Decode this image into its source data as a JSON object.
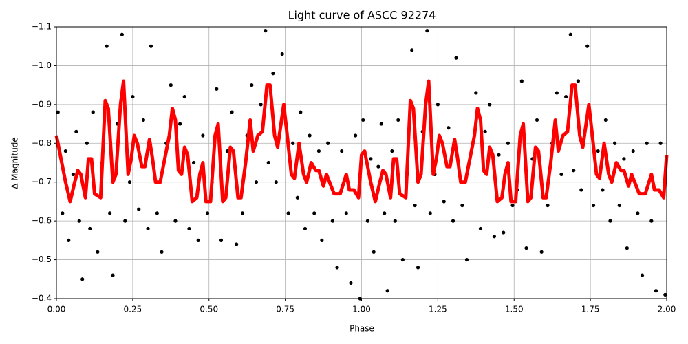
{
  "chart_data": {
    "type": "scatter",
    "title": "Light curve of ASCC 92274",
    "x_label": "Phase",
    "y_label": "Δ Magnitude",
    "xlim": [
      0,
      2
    ],
    "ylim": [
      -0.4,
      -1.1
    ],
    "xticks": [
      {
        "value": 0,
        "label": "0.00"
      },
      {
        "value": 0.25,
        "label": "0.25"
      },
      {
        "value": 0.5,
        "label": "0.50"
      },
      {
        "value": 0.75,
        "label": "0.75"
      },
      {
        "value": 1,
        "label": "1.00"
      },
      {
        "value": 1.25,
        "label": "1.25"
      },
      {
        "value": 1.5,
        "label": "1.50"
      },
      {
        "value": 1.75,
        "label": "1.75"
      },
      {
        "value": 2,
        "label": "2.00"
      }
    ],
    "yticks": [
      {
        "value": -1.1,
        "label": "−1.1"
      },
      {
        "value": -1.0,
        "label": "−1.0"
      },
      {
        "value": -0.9,
        "label": "−0.9"
      },
      {
        "value": -0.8,
        "label": "−0.8"
      },
      {
        "value": -0.7,
        "label": "−0.7"
      },
      {
        "value": -0.6,
        "label": "−0.6"
      },
      {
        "value": -0.5,
        "label": "−0.5"
      },
      {
        "value": -0.4,
        "label": "−0.4"
      }
    ],
    "grid": true,
    "points": {
      "color": "#000000",
      "x": [
        0.005,
        0.02,
        0.03,
        0.04,
        0.055,
        0.065,
        0.075,
        0.085,
        0.1,
        0.11,
        0.12,
        0.135,
        0.15,
        0.165,
        0.175,
        0.185,
        0.2,
        0.215,
        0.225,
        0.24,
        0.25,
        0.27,
        0.285,
        0.3,
        0.31,
        0.33,
        0.345,
        0.36,
        0.375,
        0.39,
        0.405,
        0.42,
        0.435,
        0.45,
        0.465,
        0.48,
        0.495,
        0.51,
        0.525,
        0.54,
        0.56,
        0.575,
        0.59,
        0.61,
        0.625,
        0.64,
        0.655,
        0.67,
        0.685,
        0.695,
        0.71,
        0.72,
        0.74,
        0.76,
        0.775,
        0.79,
        0.8,
        0.815,
        0.83,
        0.845,
        0.86,
        0.87,
        0.89,
        0.905,
        0.92,
        0.935,
        0.95,
        0.965,
        0.98,
        0.995,
        1.005,
        1.02,
        1.03,
        1.04,
        1.055,
        1.065,
        1.075,
        1.085,
        1.1,
        1.11,
        1.12,
        1.135,
        1.15,
        1.165,
        1.175,
        1.185,
        1.2,
        1.215,
        1.225,
        1.24,
        1.25,
        1.27,
        1.285,
        1.3,
        1.31,
        1.33,
        1.345,
        1.36,
        1.375,
        1.39,
        1.405,
        1.42,
        1.435,
        1.45,
        1.465,
        1.48,
        1.495,
        1.51,
        1.525,
        1.54,
        1.56,
        1.575,
        1.59,
        1.61,
        1.625,
        1.64,
        1.655,
        1.67,
        1.685,
        1.695,
        1.71,
        1.72,
        1.74,
        1.76,
        1.775,
        1.79,
        1.8,
        1.815,
        1.83,
        1.845,
        1.86,
        1.87,
        1.89,
        1.905,
        1.92,
        1.935,
        1.95,
        1.965,
        1.98,
        1.995
      ],
      "y": [
        -0.88,
        -0.62,
        -0.78,
        -0.55,
        -0.72,
        -0.83,
        -0.6,
        -0.45,
        -0.8,
        -0.58,
        -0.88,
        -0.52,
        -0.75,
        -1.05,
        -0.62,
        -0.46,
        -0.85,
        -1.08,
        -0.6,
        -0.7,
        -0.92,
        -0.63,
        -0.86,
        -0.58,
        -1.05,
        -0.62,
        -0.52,
        -0.8,
        -0.95,
        -0.6,
        -0.85,
        -0.92,
        -0.58,
        -0.75,
        -0.55,
        -0.82,
        -0.62,
        -0.7,
        -0.94,
        -0.55,
        -0.78,
        -0.88,
        -0.54,
        -0.62,
        -0.82,
        -0.95,
        -0.7,
        -0.9,
        -1.09,
        -0.75,
        -0.98,
        -0.7,
        -1.03,
        -0.62,
        -0.8,
        -0.66,
        -0.88,
        -0.58,
        -0.82,
        -0.62,
        -0.78,
        -0.55,
        -0.8,
        -0.6,
        -0.48,
        -0.78,
        -0.62,
        -0.44,
        -0.82,
        -0.4,
        -0.86,
        -0.6,
        -0.76,
        -0.52,
        -0.74,
        -0.85,
        -0.62,
        -0.42,
        -0.78,
        -0.6,
        -0.86,
        -0.5,
        -0.72,
        -1.04,
        -0.64,
        -0.48,
        -0.83,
        -1.09,
        -0.62,
        -0.72,
        -0.9,
        -0.65,
        -0.84,
        -0.6,
        -1.02,
        -0.64,
        -0.5,
        -0.78,
        -0.93,
        -0.58,
        -0.83,
        -0.9,
        -0.56,
        -0.77,
        -0.57,
        -0.8,
        -0.64,
        -0.68,
        -0.96,
        -0.53,
        -0.76,
        -0.86,
        -0.52,
        -0.64,
        -0.8,
        -0.93,
        -0.72,
        -0.92,
        -1.08,
        -0.73,
        -0.96,
        -0.68,
        -1.05,
        -0.64,
        -0.78,
        -0.68,
        -0.86,
        -0.6,
        -0.8,
        -0.64,
        -0.76,
        -0.53,
        -0.78,
        -0.62,
        -0.46,
        -0.8,
        -0.6,
        -0.42,
        -0.8,
        -0.41
      ]
    },
    "model": {
      "color": "#ff0000",
      "x": [
        0,
        0.01,
        0.03,
        0.045,
        0.06,
        0.07,
        0.08,
        0.095,
        0.105,
        0.115,
        0.125,
        0.145,
        0.16,
        0.17,
        0.185,
        0.195,
        0.21,
        0.22,
        0.235,
        0.245,
        0.255,
        0.265,
        0.28,
        0.29,
        0.305,
        0.315,
        0.325,
        0.34,
        0.355,
        0.37,
        0.38,
        0.39,
        0.4,
        0.41,
        0.42,
        0.43,
        0.445,
        0.46,
        0.47,
        0.48,
        0.49,
        0.505,
        0.52,
        0.53,
        0.545,
        0.555,
        0.57,
        0.58,
        0.595,
        0.605,
        0.62,
        0.635,
        0.645,
        0.66,
        0.675,
        0.69,
        0.7,
        0.715,
        0.725,
        0.745,
        0.755,
        0.77,
        0.78,
        0.795,
        0.81,
        0.82,
        0.835,
        0.85,
        0.86,
        0.875,
        0.885,
        0.895,
        0.91,
        0.93,
        0.95,
        0.96,
        0.975,
        0.99,
        1.0,
        1.01,
        1.03,
        1.045,
        1.06,
        1.07,
        1.08,
        1.095,
        1.105,
        1.115,
        1.125,
        1.145,
        1.16,
        1.17,
        1.185,
        1.195,
        1.21,
        1.22,
        1.235,
        1.245,
        1.255,
        1.265,
        1.28,
        1.29,
        1.305,
        1.315,
        1.325,
        1.34,
        1.355,
        1.37,
        1.38,
        1.39,
        1.4,
        1.41,
        1.42,
        1.43,
        1.445,
        1.46,
        1.47,
        1.48,
        1.49,
        1.505,
        1.52,
        1.53,
        1.545,
        1.555,
        1.57,
        1.58,
        1.595,
        1.605,
        1.62,
        1.635,
        1.645,
        1.66,
        1.675,
        1.69,
        1.7,
        1.715,
        1.725,
        1.745,
        1.755,
        1.77,
        1.78,
        1.795,
        1.81,
        1.82,
        1.835,
        1.85,
        1.86,
        1.875,
        1.885,
        1.895,
        1.91,
        1.93,
        1.95,
        1.96,
        1.975,
        1.99,
        2.0
      ],
      "y": [
        -0.82,
        -0.78,
        -0.7,
        -0.65,
        -0.7,
        -0.73,
        -0.72,
        -0.66,
        -0.76,
        -0.76,
        -0.67,
        -0.66,
        -0.91,
        -0.89,
        -0.7,
        -0.72,
        -0.9,
        -0.96,
        -0.72,
        -0.76,
        -0.82,
        -0.8,
        -0.74,
        -0.74,
        -0.81,
        -0.76,
        -0.7,
        -0.7,
        -0.76,
        -0.82,
        -0.89,
        -0.86,
        -0.73,
        -0.72,
        -0.79,
        -0.77,
        -0.65,
        -0.66,
        -0.72,
        -0.75,
        -0.65,
        -0.65,
        -0.82,
        -0.85,
        -0.65,
        -0.66,
        -0.79,
        -0.78,
        -0.66,
        -0.66,
        -0.75,
        -0.86,
        -0.78,
        -0.82,
        -0.83,
        -0.95,
        -0.95,
        -0.82,
        -0.79,
        -0.9,
        -0.83,
        -0.72,
        -0.71,
        -0.8,
        -0.72,
        -0.7,
        -0.75,
        -0.73,
        -0.73,
        -0.69,
        -0.72,
        -0.7,
        -0.67,
        -0.67,
        -0.72,
        -0.68,
        -0.68,
        -0.66,
        -0.77,
        -0.78,
        -0.7,
        -0.65,
        -0.7,
        -0.73,
        -0.72,
        -0.66,
        -0.76,
        -0.76,
        -0.67,
        -0.66,
        -0.91,
        -0.89,
        -0.7,
        -0.72,
        -0.9,
        -0.96,
        -0.72,
        -0.76,
        -0.82,
        -0.8,
        -0.74,
        -0.74,
        -0.81,
        -0.76,
        -0.7,
        -0.7,
        -0.76,
        -0.82,
        -0.89,
        -0.86,
        -0.73,
        -0.72,
        -0.79,
        -0.77,
        -0.65,
        -0.66,
        -0.72,
        -0.75,
        -0.65,
        -0.65,
        -0.82,
        -0.85,
        -0.65,
        -0.66,
        -0.79,
        -0.78,
        -0.66,
        -0.66,
        -0.75,
        -0.86,
        -0.78,
        -0.82,
        -0.83,
        -0.95,
        -0.95,
        -0.82,
        -0.79,
        -0.9,
        -0.83,
        -0.72,
        -0.71,
        -0.8,
        -0.72,
        -0.7,
        -0.75,
        -0.73,
        -0.73,
        -0.69,
        -0.72,
        -0.7,
        -0.67,
        -0.67,
        -0.72,
        -0.68,
        -0.68,
        -0.66,
        -0.77
      ]
    }
  }
}
